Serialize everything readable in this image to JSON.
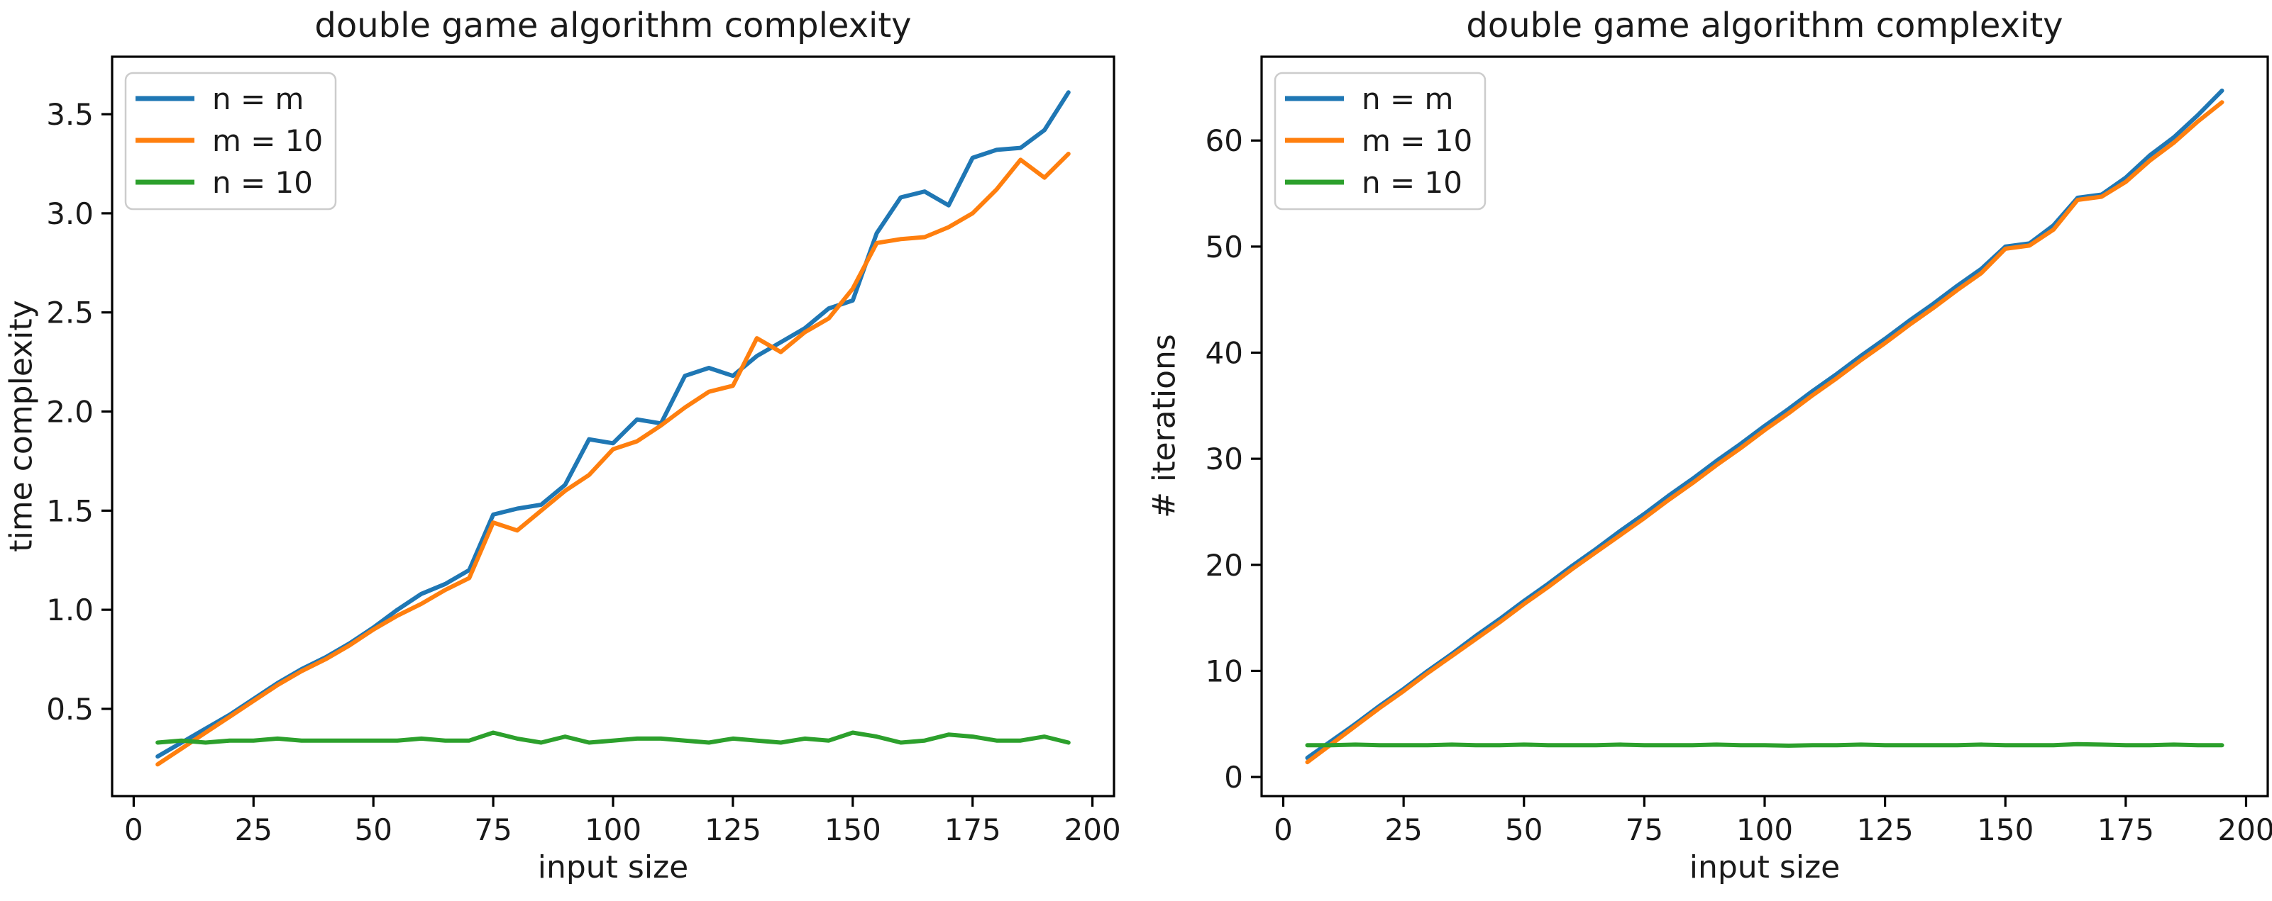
{
  "figure": {
    "background": "#ffffff",
    "text_color": "#1a1a1a",
    "spine_color": "#000000"
  },
  "chart_data": [
    {
      "id": "time-complexity-chart",
      "type": "line",
      "title": "double game algorithm complexity",
      "xlabel": "input size",
      "ylabel": "time complexity",
      "xlim": [
        -4.5,
        204.5
      ],
      "ylim": [
        0.06,
        3.79
      ],
      "xticks": [
        0,
        25,
        50,
        75,
        100,
        125,
        150,
        175,
        200
      ],
      "xtick_labels": [
        "0",
        "25",
        "50",
        "75",
        "100",
        "125",
        "150",
        "175",
        "200"
      ],
      "yticks": [
        0.5,
        1.0,
        1.5,
        2.0,
        2.5,
        3.0,
        3.5
      ],
      "ytick_labels": [
        "0.5",
        "1.0",
        "1.5",
        "2.0",
        "2.5",
        "3.0",
        "3.5"
      ],
      "grid": false,
      "legend": {
        "location": "upper left"
      },
      "x": [
        5,
        10,
        15,
        20,
        25,
        30,
        35,
        40,
        45,
        50,
        55,
        60,
        65,
        70,
        75,
        80,
        85,
        90,
        95,
        100,
        105,
        110,
        115,
        120,
        125,
        130,
        135,
        140,
        145,
        150,
        155,
        160,
        165,
        170,
        175,
        180,
        185,
        190,
        195
      ],
      "series": [
        {
          "name": "n = m",
          "color": "#1f77b4",
          "values": [
            0.26,
            0.33,
            0.4,
            0.47,
            0.55,
            0.63,
            0.7,
            0.76,
            0.83,
            0.91,
            1.0,
            1.08,
            1.13,
            1.2,
            1.48,
            1.51,
            1.53,
            1.63,
            1.86,
            1.84,
            1.96,
            1.94,
            2.18,
            2.22,
            2.18,
            2.28,
            2.35,
            2.42,
            2.52,
            2.56,
            2.9,
            3.08,
            3.11,
            3.04,
            3.28,
            3.32,
            3.33,
            3.42,
            3.61
          ]
        },
        {
          "name": "m = 10",
          "color": "#ff7f0e",
          "values": [
            0.22,
            0.3,
            0.38,
            0.46,
            0.54,
            0.62,
            0.69,
            0.75,
            0.82,
            0.9,
            0.97,
            1.03,
            1.1,
            1.16,
            1.44,
            1.4,
            1.5,
            1.6,
            1.68,
            1.81,
            1.85,
            1.93,
            2.02,
            2.1,
            2.13,
            2.37,
            2.3,
            2.4,
            2.47,
            2.62,
            2.85,
            2.87,
            2.88,
            2.93,
            3.0,
            3.12,
            3.27,
            3.18,
            3.3
          ]
        },
        {
          "name": "n = 10",
          "color": "#2ca02c",
          "values": [
            0.33,
            0.34,
            0.33,
            0.34,
            0.34,
            0.35,
            0.34,
            0.34,
            0.34,
            0.34,
            0.34,
            0.35,
            0.34,
            0.34,
            0.38,
            0.35,
            0.33,
            0.36,
            0.33,
            0.34,
            0.35,
            0.35,
            0.34,
            0.33,
            0.35,
            0.34,
            0.33,
            0.35,
            0.34,
            0.38,
            0.36,
            0.33,
            0.34,
            0.37,
            0.36,
            0.34,
            0.34,
            0.36,
            0.33
          ]
        }
      ]
    },
    {
      "id": "iterations-chart",
      "type": "line",
      "title": "double game algorithm complexity",
      "xlabel": "input size",
      "ylabel": "# iterations",
      "xlim": [
        -4.5,
        204.5
      ],
      "ylim": [
        -1.8,
        67.9
      ],
      "xticks": [
        0,
        25,
        50,
        75,
        100,
        125,
        150,
        175,
        200
      ],
      "xtick_labels": [
        "0",
        "25",
        "50",
        "75",
        "100",
        "125",
        "150",
        "175",
        "200"
      ],
      "yticks": [
        0,
        10,
        20,
        30,
        40,
        50,
        60
      ],
      "ytick_labels": [
        "0",
        "10",
        "20",
        "30",
        "40",
        "50",
        "60"
      ],
      "grid": false,
      "legend": {
        "location": "upper left"
      },
      "x": [
        5,
        10,
        15,
        20,
        25,
        30,
        35,
        40,
        45,
        50,
        55,
        60,
        65,
        70,
        75,
        80,
        85,
        90,
        95,
        100,
        105,
        110,
        115,
        120,
        125,
        130,
        135,
        140,
        145,
        150,
        155,
        160,
        165,
        170,
        175,
        180,
        185,
        190,
        195
      ],
      "series": [
        {
          "name": "n = m",
          "color": "#1f77b4",
          "values": [
            1.8,
            3.4,
            5.0,
            6.7,
            8.3,
            10.0,
            11.6,
            13.3,
            14.9,
            16.6,
            18.2,
            19.9,
            21.5,
            23.2,
            24.8,
            26.5,
            28.1,
            29.8,
            31.4,
            33.1,
            34.7,
            36.4,
            38.0,
            39.7,
            41.3,
            43.0,
            44.6,
            46.3,
            47.9,
            50.0,
            50.3,
            52.0,
            54.6,
            54.9,
            56.5,
            58.6,
            60.3,
            62.4,
            64.7
          ]
        },
        {
          "name": "m = 10",
          "color": "#ff7f0e",
          "values": [
            1.4,
            3.1,
            4.8,
            6.5,
            8.1,
            9.8,
            11.4,
            13.0,
            14.6,
            16.3,
            17.9,
            19.6,
            21.2,
            22.8,
            24.4,
            26.1,
            27.7,
            29.4,
            31.0,
            32.7,
            34.3,
            36.0,
            37.6,
            39.3,
            40.9,
            42.6,
            44.2,
            45.9,
            47.5,
            49.8,
            50.1,
            51.6,
            54.4,
            54.7,
            56.1,
            58.1,
            59.8,
            61.8,
            63.6
          ]
        },
        {
          "name": "n = 10",
          "color": "#2ca02c",
          "values": [
            3.0,
            3.0,
            3.05,
            3.0,
            3.0,
            3.0,
            3.05,
            3.0,
            3.0,
            3.05,
            3.0,
            3.0,
            3.0,
            3.05,
            3.0,
            3.0,
            3.0,
            3.05,
            3.0,
            3.0,
            2.95,
            3.0,
            3.0,
            3.05,
            3.0,
            3.0,
            3.0,
            3.0,
            3.05,
            3.0,
            3.0,
            3.0,
            3.1,
            3.05,
            3.0,
            3.0,
            3.05,
            3.0,
            3.0
          ]
        }
      ]
    }
  ]
}
